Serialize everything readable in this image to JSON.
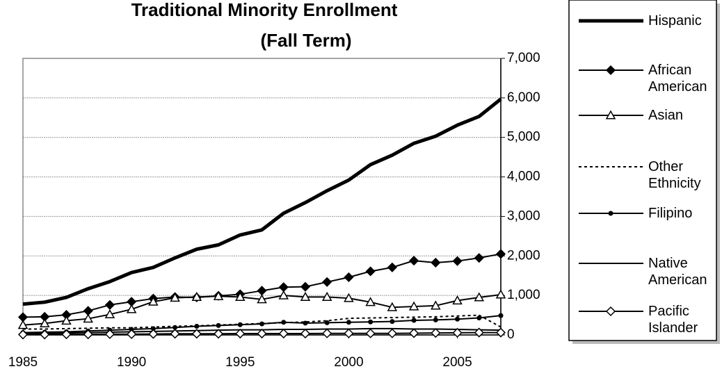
{
  "chart_data": {
    "type": "line",
    "title": "Traditional Minority Enrollment",
    "subtitle": "(Fall Term)",
    "x": [
      1985,
      1986,
      1987,
      1988,
      1989,
      1990,
      1991,
      1992,
      1993,
      1994,
      1995,
      1996,
      1997,
      1998,
      1999,
      2000,
      2001,
      2002,
      2003,
      2004,
      2005,
      2006,
      2007
    ],
    "xlim": [
      1985,
      2007
    ],
    "xticks": [
      1985,
      1990,
      1995,
      2000,
      2005
    ],
    "ylim": [
      0,
      7000
    ],
    "yticks": [
      0,
      {
        "value": 1000,
        "label": "1,000"
      },
      {
        "value": 2000,
        "label": "2,000"
      },
      {
        "value": 3000,
        "label": "3,000"
      },
      {
        "value": 4000,
        "label": "4,000"
      },
      {
        "value": 5000,
        "label": "5,000"
      },
      {
        "value": 6000,
        "label": "6,000"
      },
      {
        "value": 7000,
        "label": "7,000"
      }
    ],
    "y_axis_side": "right",
    "grid": true,
    "legend": "right",
    "series": [
      {
        "name": "Hispanic",
        "color": "#000000",
        "linewidth": 5,
        "marker": "none",
        "dash": false,
        "values": [
          780,
          830,
          950,
          1170,
          1350,
          1580,
          1710,
          1950,
          2170,
          2280,
          2530,
          2660,
          3080,
          3350,
          3650,
          3920,
          4310,
          4550,
          4850,
          5030,
          5310,
          5530,
          5970
        ]
      },
      {
        "name": "African American",
        "color": "#000000",
        "linewidth": 2,
        "marker": "diamond",
        "dash": false,
        "values": [
          450,
          460,
          510,
          610,
          760,
          840,
          920,
          960,
          950,
          990,
          1030,
          1120,
          1210,
          1220,
          1340,
          1460,
          1610,
          1710,
          1880,
          1830,
          1870,
          1950,
          2050
        ]
      },
      {
        "name": "Asian",
        "color": "#000000",
        "linewidth": 2,
        "marker": "triangle",
        "dash": false,
        "values": [
          250,
          290,
          360,
          410,
          520,
          650,
          840,
          940,
          960,
          980,
          960,
          900,
          1000,
          960,
          960,
          930,
          830,
          700,
          720,
          740,
          870,
          950,
          1020
        ]
      },
      {
        "name": "Other Ethnicity",
        "color": "#000000",
        "linewidth": 2,
        "marker": "none",
        "dash": true,
        "values": [
          150,
          150,
          160,
          170,
          180,
          180,
          200,
          220,
          230,
          250,
          270,
          290,
          310,
          330,
          360,
          420,
          430,
          440,
          450,
          460,
          480,
          500,
          200
        ]
      },
      {
        "name": "Filipino",
        "color": "#000000",
        "linewidth": 2,
        "marker": "dot",
        "dash": false,
        "values": [
          60,
          70,
          80,
          100,
          120,
          140,
          160,
          190,
          220,
          240,
          260,
          280,
          320,
          300,
          310,
          320,
          330,
          340,
          370,
          380,
          400,
          430,
          490
        ]
      },
      {
        "name": "Native American",
        "color": "#000000",
        "linewidth": 2,
        "marker": "none",
        "dash": false,
        "values": [
          30,
          40,
          50,
          60,
          70,
          80,
          90,
          100,
          110,
          120,
          130,
          130,
          140,
          140,
          150,
          150,
          160,
          160,
          150,
          150,
          140,
          130,
          120
        ]
      },
      {
        "name": "Pacific Islander",
        "color": "#000000",
        "linewidth": 2,
        "marker": "open-diamond",
        "dash": false,
        "values": [
          10,
          10,
          15,
          15,
          20,
          20,
          25,
          30,
          30,
          30,
          35,
          35,
          35,
          35,
          40,
          40,
          40,
          40,
          45,
          50,
          55,
          60,
          60
        ]
      }
    ]
  }
}
